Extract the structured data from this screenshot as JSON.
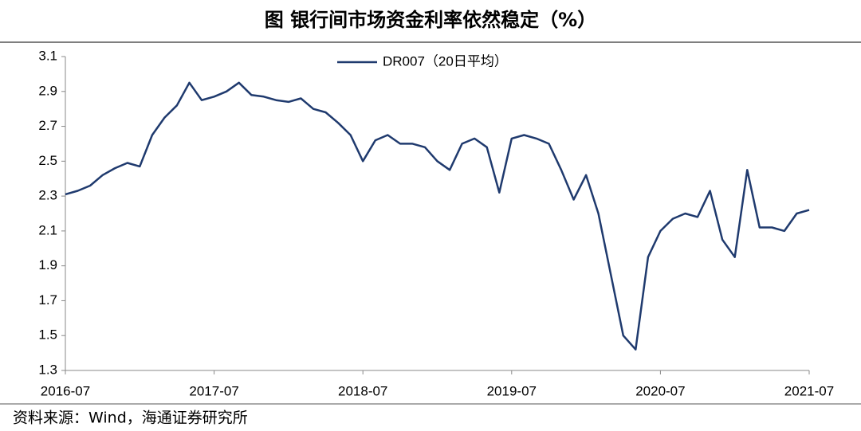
{
  "chart_data": {
    "type": "line",
    "title": "图  银行间市场资金利率依然稳定（%）",
    "source": "资料来源：Wind，海通证券研究所",
    "x": [
      "2016-07",
      "2016-08",
      "2016-09",
      "2016-10",
      "2016-11",
      "2016-12",
      "2017-01",
      "2017-02",
      "2017-03",
      "2017-04",
      "2017-05",
      "2017-06",
      "2017-07",
      "2017-08",
      "2017-09",
      "2017-10",
      "2017-11",
      "2017-12",
      "2018-01",
      "2018-02",
      "2018-03",
      "2018-04",
      "2018-05",
      "2018-06",
      "2018-07",
      "2018-08",
      "2018-09",
      "2018-10",
      "2018-11",
      "2018-12",
      "2019-01",
      "2019-02",
      "2019-03",
      "2019-04",
      "2019-05",
      "2019-06",
      "2019-07",
      "2019-08",
      "2019-09",
      "2019-10",
      "2019-11",
      "2019-12",
      "2020-01",
      "2020-02",
      "2020-03",
      "2020-04",
      "2020-05",
      "2020-06",
      "2020-07",
      "2020-08",
      "2020-09",
      "2020-10",
      "2020-11",
      "2020-12",
      "2021-01",
      "2021-02",
      "2021-03",
      "2021-04",
      "2021-05",
      "2021-06",
      "2021-07"
    ],
    "series": [
      {
        "name": "DR007（20日平均）",
        "color": "#1f3a6e",
        "values": [
          2.31,
          2.33,
          2.36,
          2.42,
          2.46,
          2.49,
          2.47,
          2.65,
          2.75,
          2.82,
          2.95,
          2.85,
          2.87,
          2.9,
          2.95,
          2.88,
          2.87,
          2.85,
          2.84,
          2.86,
          2.8,
          2.78,
          2.72,
          2.65,
          2.5,
          2.62,
          2.65,
          2.6,
          2.6,
          2.58,
          2.5,
          2.45,
          2.6,
          2.63,
          2.58,
          2.32,
          2.63,
          2.65,
          2.63,
          2.6,
          2.45,
          2.28,
          2.42,
          2.2,
          1.85,
          1.5,
          1.42,
          1.95,
          2.1,
          2.17,
          2.2,
          2.18,
          2.33,
          2.05,
          1.95,
          2.45,
          2.12,
          2.12,
          2.1,
          2.2,
          2.22
        ]
      }
    ],
    "xticks": [
      "2016-07",
      "2017-07",
      "2018-07",
      "2019-07",
      "2020-07",
      "2021-07"
    ],
    "ylim": [
      1.3,
      3.1
    ],
    "yticks": [
      1.3,
      1.5,
      1.7,
      1.9,
      2.1,
      2.3,
      2.5,
      2.7,
      2.9,
      3.1
    ],
    "legend": "top"
  }
}
